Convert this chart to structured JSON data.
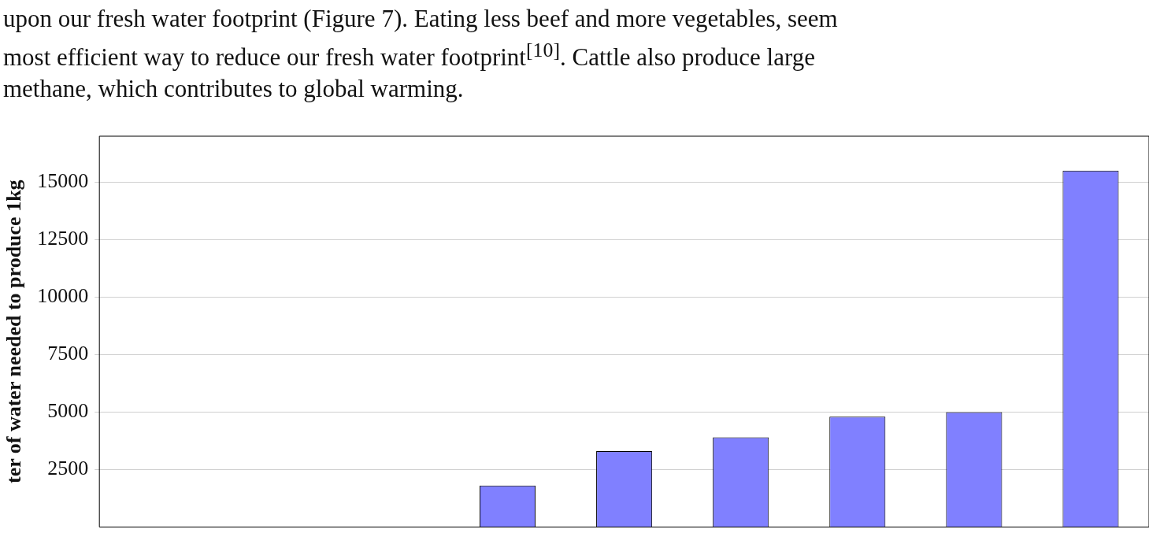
{
  "chart_data": {
    "type": "bar",
    "annotations": [
      "upon our fresh water footprint (Figure 7). Eating less beef and more vegetables, seem",
      "most efficient way to reduce our fresh water footprint$^{[10]}$. Cattle also produce large",
      "methane, which contributes to global warming."
    ],
    "ylabel": "ter of water needed to produce 1kg",
    "categories": [
      null,
      null,
      null,
      null,
      null,
      null,
      null,
      null,
      null
    ],
    "values": [
      null,
      null,
      null,
      1800,
      3300,
      3900,
      4800,
      5000,
      15500
    ],
    "color": "#8080ff",
    "ylim": [
      0,
      17000
    ],
    "yticks": [
      2500,
      5000,
      7500,
      10000,
      12500,
      15000
    ],
    "grid": "y",
    "tick_labels": "y",
    "legend": false
  }
}
